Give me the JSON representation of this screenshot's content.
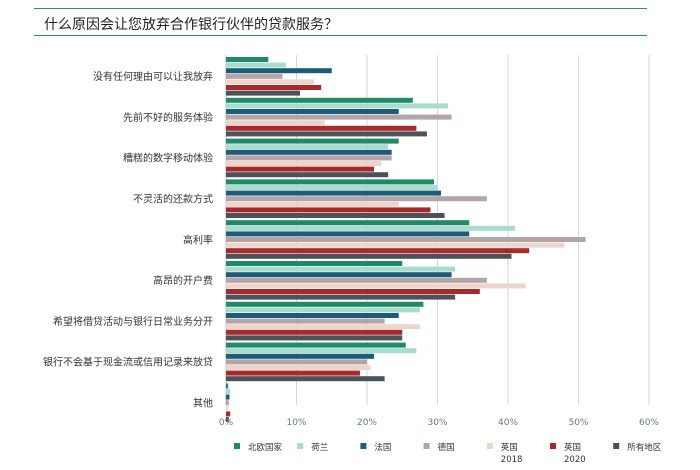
{
  "title": "什么原因会让您放弃合作银行伙伴的贷款服务？",
  "chart_data": {
    "type": "bar",
    "orientation": "horizontal",
    "title": "什么原因会让您放弃合作银行伙伴的贷款服务？",
    "xlabel": "",
    "ylabel": "",
    "xlim": [
      0,
      60
    ],
    "x_ticks": [
      "0%",
      "10%",
      "20%",
      "30%",
      "40%",
      "50%",
      "60%"
    ],
    "grid": "vertical",
    "legend_position": "bottom",
    "categories": [
      "没有任何理由可以让我放弃",
      "先前不好的服务体验",
      "糟糕的数字移动体验",
      "不灵活的还款方式",
      "高利率",
      "高昂的开户费",
      "希望将借贷活动与银行日常业务分开",
      "银行不会基于现金流或信用记录来放贷",
      "其他"
    ],
    "series": [
      {
        "name": "北欧国家",
        "color": "#1e8a68",
        "values": [
          6,
          26.5,
          24.5,
          29.5,
          34.5,
          25,
          28,
          25.5,
          0.3
        ]
      },
      {
        "name": "荷兰",
        "color": "#a8dccd",
        "values": [
          8.5,
          31.5,
          23,
          30,
          41,
          32.5,
          27.5,
          27,
          0.6
        ]
      },
      {
        "name": "法国",
        "color": "#1d5c78",
        "values": [
          15,
          24.5,
          23.5,
          30.5,
          34.5,
          32,
          24.5,
          21,
          0.5
        ]
      },
      {
        "name": "德国",
        "color": "#b3a4a8",
        "values": [
          8,
          32,
          23.5,
          37,
          51,
          37,
          22.5,
          20,
          0.4
        ]
      },
      {
        "name": "英国\n2018",
        "color": "#ecd6cc",
        "values": [
          12.5,
          14,
          22,
          24.5,
          48,
          42.5,
          27.5,
          20.5,
          0.3
        ]
      },
      {
        "name": "英国\n2020",
        "color": "#a8292c",
        "values": [
          13.5,
          27,
          21,
          29,
          43,
          36,
          25,
          19,
          0.6
        ]
      },
      {
        "name": "所有地区",
        "color": "#4d5159",
        "values": [
          10.5,
          28.5,
          23,
          31,
          40.5,
          32.5,
          25,
          22.5,
          0.4
        ]
      }
    ]
  }
}
